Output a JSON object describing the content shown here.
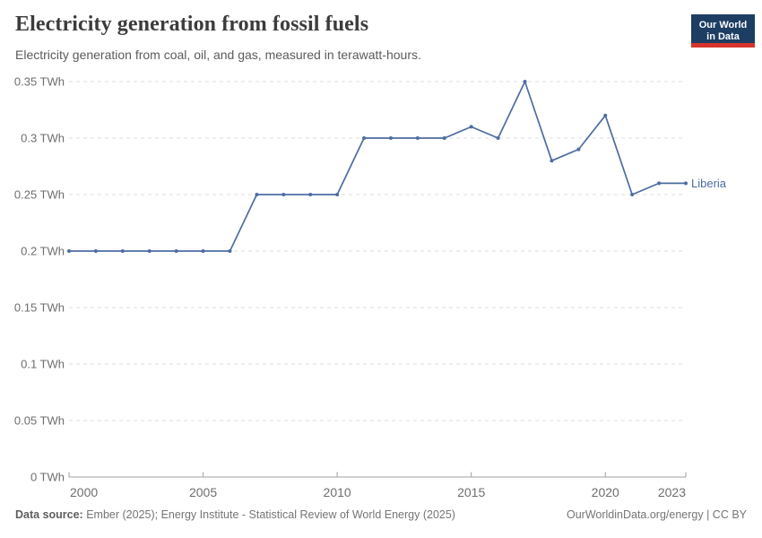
{
  "header": {
    "title": "Electricity generation from fossil fuels",
    "subtitle": "Electricity generation from coal, oil, and gas, measured in terawatt-hours.",
    "logo": {
      "line1": "Our World",
      "line2": "in Data",
      "bg_color": "#1d3d63",
      "accent_color": "#d7342c"
    }
  },
  "chart_data": {
    "type": "line",
    "title": "Electricity generation from fossil fuels",
    "unit": "TWh",
    "x": [
      2000,
      2001,
      2002,
      2003,
      2004,
      2005,
      2006,
      2007,
      2008,
      2009,
      2010,
      2011,
      2012,
      2013,
      2014,
      2015,
      2016,
      2017,
      2018,
      2019,
      2020,
      2021,
      2022,
      2023
    ],
    "series": [
      {
        "name": "Liberia",
        "color": "#4d6ca2",
        "values": [
          0.2,
          0.2,
          0.2,
          0.2,
          0.2,
          0.2,
          0.2,
          0.25,
          0.25,
          0.25,
          0.25,
          0.3,
          0.3,
          0.3,
          0.3,
          0.31,
          0.3,
          0.35,
          0.28,
          0.29,
          0.32,
          0.25,
          0.26,
          0.26
        ]
      }
    ],
    "xlim": [
      2000,
      2023
    ],
    "ylim": [
      0,
      0.35
    ],
    "x_ticks": [
      2000,
      2005,
      2010,
      2015,
      2020,
      2023
    ],
    "y_ticks": [
      {
        "value": 0,
        "label": "0 TWh"
      },
      {
        "value": 0.05,
        "label": "0.05 TWh"
      },
      {
        "value": 0.1,
        "label": "0.1 TWh"
      },
      {
        "value": 0.15,
        "label": "0.15 TWh"
      },
      {
        "value": 0.2,
        "label": "0.2 TWh"
      },
      {
        "value": 0.25,
        "label": "0.25 TWh"
      },
      {
        "value": 0.3,
        "label": "0.3 TWh"
      },
      {
        "value": 0.35,
        "label": "0.35 TWh"
      }
    ],
    "grid": true,
    "legend_position": "end-of-line-label",
    "colors": {
      "gridline": "#dddddd",
      "axis": "#a0a0a0",
      "tick_label": "#6e6e6e"
    }
  },
  "footer": {
    "source_label": "Data source:",
    "source_text": " Ember (2025); Energy Institute - Statistical Review of World Energy (2025)",
    "link_text": "OurWorldinData.org/energy | CC BY"
  }
}
